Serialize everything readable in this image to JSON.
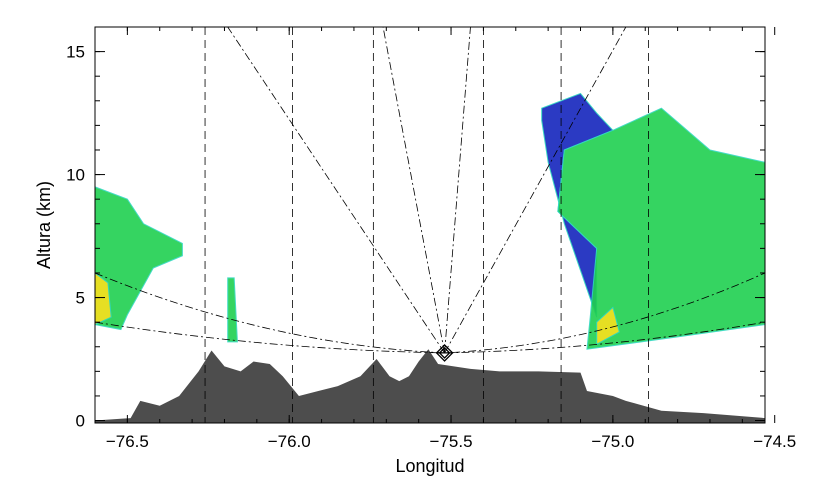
{
  "chart_data": {
    "type": "area",
    "title": "",
    "xlabel": "Longitud",
    "ylabel": "Altura (km)",
    "xlim": [
      -76.6,
      -74.53
    ],
    "ylim": [
      -0.1,
      16
    ],
    "xticks": [
      -76.5,
      -76.0,
      -75.5,
      -75.0,
      -74.5
    ],
    "xtick_labels": [
      "−76.5",
      "−76.0",
      "−75.5",
      "−75.0",
      "−74.5"
    ],
    "yticks": [
      0,
      5,
      10,
      15
    ],
    "ytick_labels": [
      "0",
      "5",
      "10",
      "15"
    ],
    "grid": false,
    "colors": {
      "terrain": "#4d4d4d",
      "low": "#2030c0",
      "mid": "#20d050",
      "high": "#f0e020",
      "edge": "#30d8c0"
    },
    "radar_site": {
      "lon": -75.52,
      "alt": 2.75
    },
    "terrain": [
      [
        -76.6,
        0
      ],
      [
        -76.49,
        0.1
      ],
      [
        -76.46,
        0.8
      ],
      [
        -76.4,
        0.6
      ],
      [
        -76.34,
        1.0
      ],
      [
        -76.28,
        2.0
      ],
      [
        -76.24,
        2.85
      ],
      [
        -76.2,
        2.2
      ],
      [
        -76.15,
        2.0
      ],
      [
        -76.11,
        2.4
      ],
      [
        -76.06,
        2.3
      ],
      [
        -76.02,
        1.8
      ],
      [
        -75.97,
        1.0
      ],
      [
        -75.91,
        1.2
      ],
      [
        -75.85,
        1.4
      ],
      [
        -75.78,
        1.8
      ],
      [
        -75.73,
        2.5
      ],
      [
        -75.69,
        1.8
      ],
      [
        -75.66,
        1.6
      ],
      [
        -75.63,
        1.8
      ],
      [
        -75.6,
        2.4
      ],
      [
        -75.57,
        2.9
      ],
      [
        -75.54,
        2.3
      ],
      [
        -75.44,
        2.1
      ],
      [
        -75.35,
        2.0
      ],
      [
        -75.23,
        2.0
      ],
      [
        -75.1,
        1.95
      ],
      [
        -75.08,
        1.2
      ],
      [
        -75.0,
        1.0
      ],
      [
        -74.96,
        0.8
      ],
      [
        -74.85,
        0.4
      ],
      [
        -74.72,
        0.3
      ],
      [
        -74.53,
        0.1
      ]
    ],
    "vertical_lines": [
      -76.26,
      -75.99,
      -75.74,
      -75.4,
      -75.16,
      -74.89
    ],
    "beam_lines_to_top": [
      -76.19,
      -75.71,
      -75.44,
      -74.96
    ],
    "sweep_edges": {
      "lower_at_edges": 4.0,
      "upper_at_edges": 6.0
    },
    "echo_regions": [
      {
        "level": "mid",
        "polygon": [
          [
            -76.6,
            9.5
          ],
          [
            -76.5,
            9.0
          ],
          [
            -76.45,
            8.0
          ],
          [
            -76.33,
            7.2
          ],
          [
            -76.33,
            6.7
          ],
          [
            -76.42,
            6.2
          ],
          [
            -76.5,
            4.3
          ],
          [
            -76.52,
            3.7
          ],
          [
            -76.6,
            3.9
          ]
        ]
      },
      {
        "level": "high",
        "polygon": [
          [
            -76.6,
            6.0
          ],
          [
            -76.56,
            5.6
          ],
          [
            -76.55,
            4.2
          ],
          [
            -76.6,
            3.9
          ]
        ]
      },
      {
        "level": "mid",
        "polygon": [
          [
            -76.19,
            5.8
          ],
          [
            -76.17,
            5.8
          ],
          [
            -76.16,
            3.2
          ],
          [
            -76.19,
            3.2
          ]
        ]
      },
      {
        "level": "low",
        "polygon": [
          [
            -75.22,
            12.7
          ],
          [
            -75.1,
            13.3
          ],
          [
            -75.05,
            12.5
          ],
          [
            -75.0,
            11.8
          ],
          [
            -75.15,
            11.0
          ],
          [
            -75.17,
            8.5
          ],
          [
            -75.05,
            7.0
          ],
          [
            -75.05,
            4.2
          ],
          [
            -75.15,
            8.0
          ],
          [
            -75.2,
            10.5
          ],
          [
            -75.22,
            12.2
          ]
        ]
      },
      {
        "level": "mid",
        "polygon": [
          [
            -75.15,
            11.0
          ],
          [
            -75.0,
            11.8
          ],
          [
            -74.85,
            12.7
          ],
          [
            -74.7,
            11.0
          ],
          [
            -74.53,
            10.5
          ],
          [
            -74.53,
            3.9
          ],
          [
            -74.8,
            3.4
          ],
          [
            -75.08,
            2.9
          ],
          [
            -75.07,
            4.2
          ],
          [
            -75.05,
            7.0
          ],
          [
            -75.17,
            8.5
          ]
        ]
      },
      {
        "level": "high",
        "polygon": [
          [
            -75.05,
            4.0
          ],
          [
            -75.0,
            4.6
          ],
          [
            -74.98,
            3.6
          ],
          [
            -75.05,
            3.1
          ]
        ]
      }
    ]
  }
}
